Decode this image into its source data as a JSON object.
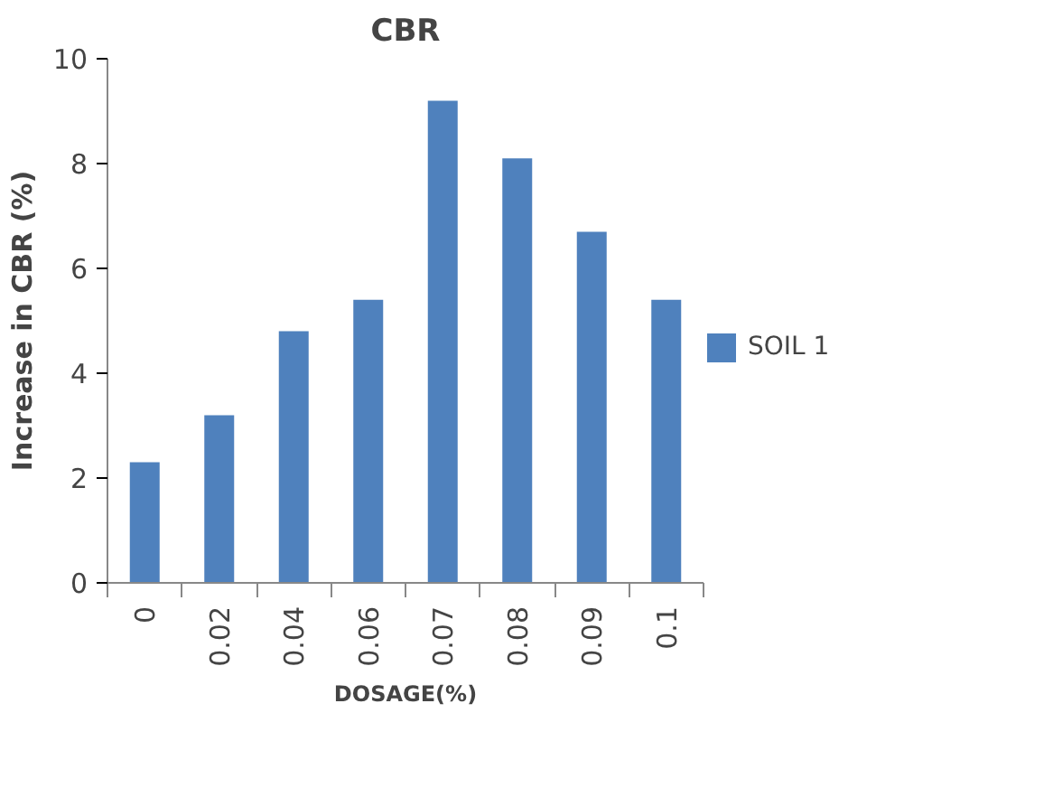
{
  "chart_data": {
    "type": "bar",
    "title": "CBR",
    "xlabel": "DOSAGE(%)",
    "ylabel": "Increase in CBR (%)",
    "categories": [
      "0",
      "0.02",
      "0.04",
      "0.06",
      "0.07",
      "0.08",
      "0.09",
      "0.1"
    ],
    "series": [
      {
        "name": "SOIL 1",
        "color": "#4f81bd",
        "values": [
          2.3,
          3.2,
          4.8,
          5.4,
          9.2,
          8.1,
          6.7,
          5.4
        ]
      }
    ],
    "ylim": [
      0,
      10
    ],
    "yticks": [
      0,
      2,
      4,
      6,
      8,
      10
    ],
    "grid": false,
    "legend": "right"
  }
}
